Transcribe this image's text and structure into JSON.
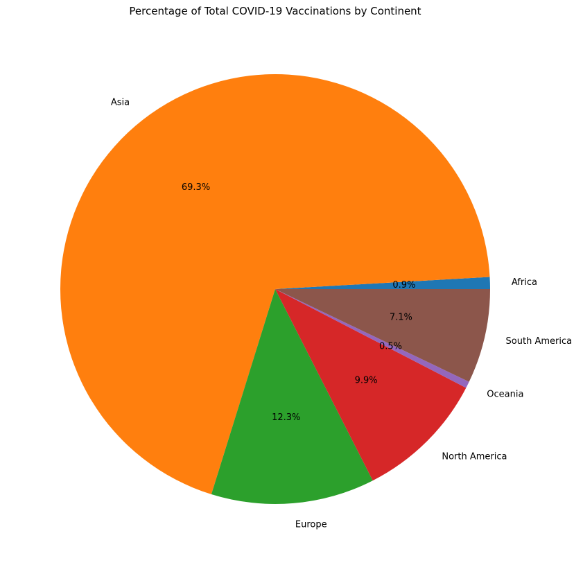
{
  "chart_data": {
    "type": "pie",
    "title": "Percentage of Total COVID-19 Vaccinations by Continent",
    "start_angle_deg": 0,
    "direction": "counterclockwise",
    "slices": [
      {
        "label": "Africa",
        "value": 0.9,
        "pct_label": "0.9%",
        "color": "#1f77b4"
      },
      {
        "label": "Asia",
        "value": 69.3,
        "pct_label": "69.3%",
        "color": "#ff7f0e"
      },
      {
        "label": "Europe",
        "value": 12.3,
        "pct_label": "12.3%",
        "color": "#2ca02c"
      },
      {
        "label": "North America",
        "value": 9.9,
        "pct_label": "9.9%",
        "color": "#d62728"
      },
      {
        "label": "Oceania",
        "value": 0.5,
        "pct_label": "0.5%",
        "color": "#9467bd"
      },
      {
        "label": "South America",
        "value": 7.1,
        "pct_label": "7.1%",
        "color": "#8c564b"
      }
    ]
  }
}
